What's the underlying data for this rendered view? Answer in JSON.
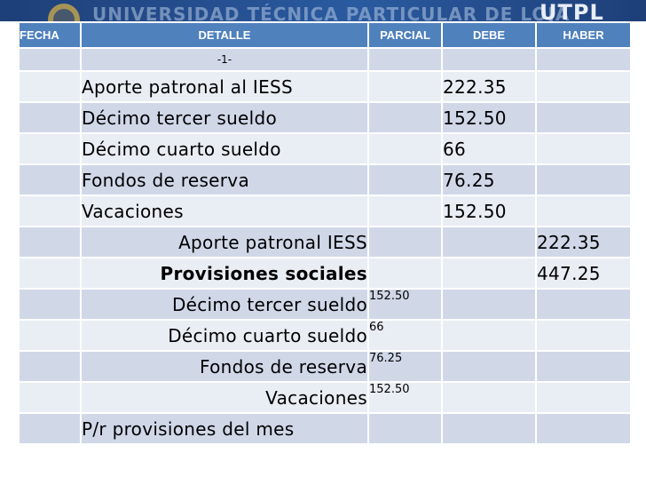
{
  "banner": {
    "institution": "UNIVERSIDAD TÉCNICA PARTICULAR DE LOJA",
    "logo": "UTPL"
  },
  "table": {
    "headers": {
      "fecha": "FECHA",
      "detalle": "DETALLE",
      "parcial": "PARCIAL",
      "debe": "DEBE",
      "haber": "HABER"
    },
    "rows": [
      {
        "fecha": "",
        "detalle": "-1-",
        "parcial": "",
        "debe": "",
        "haber": ""
      },
      {
        "fecha": "",
        "detalle": "Aporte patronal al IESS",
        "parcial": "",
        "debe": "222.35",
        "haber": ""
      },
      {
        "fecha": "",
        "detalle": "Décimo tercer sueldo",
        "parcial": "",
        "debe": "152.50",
        "haber": ""
      },
      {
        "fecha": "",
        "detalle": "Décimo cuarto sueldo",
        "parcial": "",
        "debe": "66",
        "haber": ""
      },
      {
        "fecha": "",
        "detalle": "Fondos de reserva",
        "parcial": "",
        "debe": "76.25",
        "haber": ""
      },
      {
        "fecha": "",
        "detalle": "Vacaciones",
        "parcial": "",
        "debe": "152.50",
        "haber": ""
      },
      {
        "fecha": "",
        "detalle": "Aporte patronal IESS",
        "parcial": "",
        "debe": "",
        "haber": "222.35"
      },
      {
        "fecha": "",
        "detalle": "Provisiones sociales",
        "parcial": "",
        "debe": "",
        "haber": "447.25"
      },
      {
        "fecha": "",
        "detalle": "Décimo tercer sueldo",
        "parcial": "152.50",
        "debe": "",
        "haber": ""
      },
      {
        "fecha": "",
        "detalle": "Décimo cuarto sueldo",
        "parcial": "66",
        "debe": "",
        "haber": ""
      },
      {
        "fecha": "",
        "detalle": "Fondos de reserva",
        "parcial": "76.25",
        "debe": "",
        "haber": ""
      },
      {
        "fecha": "",
        "detalle": "Vacaciones",
        "parcial": "152.50",
        "debe": "",
        "haber": ""
      },
      {
        "fecha": "",
        "detalle": "P/r provisiones del mes",
        "parcial": "",
        "debe": "",
        "haber": ""
      }
    ]
  },
  "colors": {
    "header_bg": "#4f81bd",
    "row_dark": "#d0d8e8",
    "row_light": "#e9edf4",
    "banner_bg": "#1e3f78"
  }
}
